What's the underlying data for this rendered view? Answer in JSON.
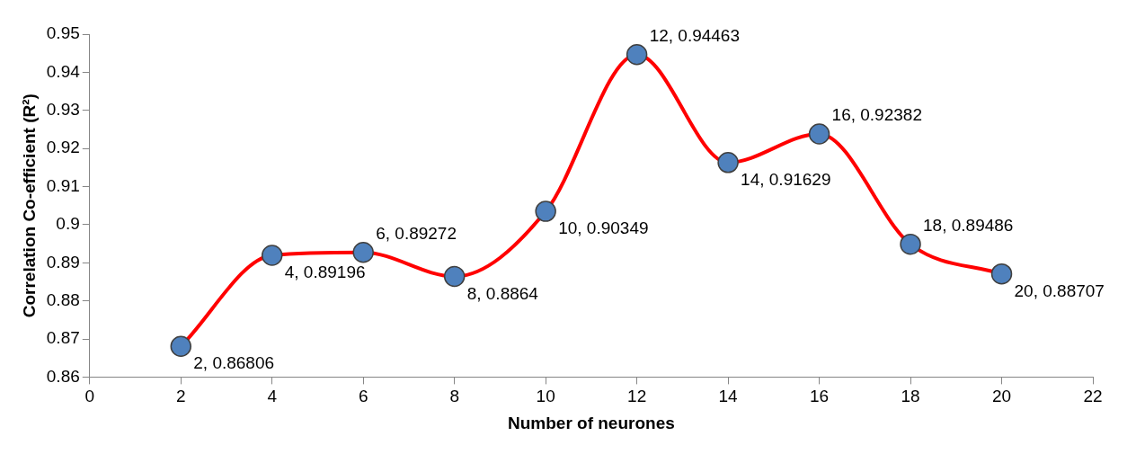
{
  "chart_data": {
    "type": "line",
    "xlabel": "Number of neurones",
    "ylabel": "Correlation Co-efficient (R²)",
    "x": [
      2,
      4,
      6,
      8,
      10,
      12,
      14,
      16,
      18,
      20
    ],
    "series": [
      {
        "color": "#ff0000",
        "colors": [
          "#4f81bd",
          "#4f81bd",
          "#4f81bd",
          "#4f81bd",
          "#4f81bd",
          "#4f81bd",
          "#4f81bd",
          "#4f81bd",
          "#4f81bd",
          "#4f81bd"
        ],
        "values": [
          0.86806,
          0.89196,
          0.89272,
          0.8864,
          0.90349,
          0.94463,
          0.91629,
          0.92382,
          0.89486,
          0.88707
        ],
        "value_labels": [
          "2, 0.86806",
          "4, 0.89196",
          "6, 0.89272",
          "8, 0.8864",
          "10, 0.90349",
          "12, 0.94463",
          "14, 0.91629",
          "16, 0.92382",
          "18, 0.89486",
          "20, 0.88707"
        ]
      }
    ],
    "xlim": [
      0,
      22
    ],
    "xticks": [
      0,
      2,
      4,
      6,
      8,
      10,
      12,
      14,
      16,
      18,
      20,
      22
    ],
    "ylim": [
      0.86,
      0.95
    ],
    "yticks": [
      0.86,
      0.87,
      0.88,
      0.89,
      0.9,
      0.91,
      0.92,
      0.93,
      0.94,
      0.95
    ],
    "grid": false,
    "legend": false,
    "marker": "circle",
    "line_style": "solid"
  }
}
